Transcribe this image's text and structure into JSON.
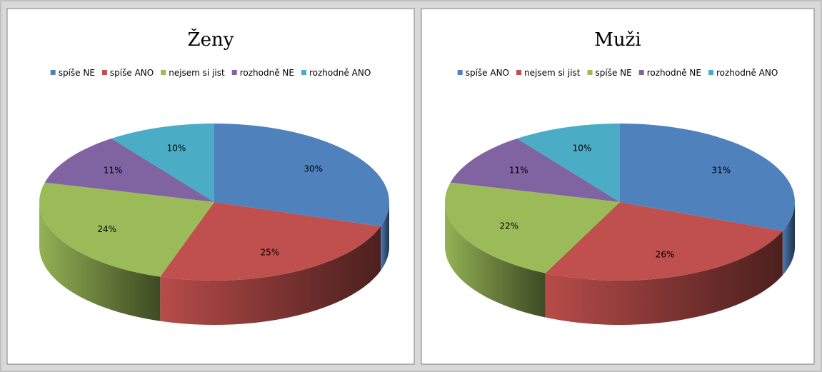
{
  "chart_data": [
    {
      "type": "pie",
      "title": "Ženy",
      "categories": [
        "spíše NE",
        "spíše ANO",
        "nejsem si jist",
        "rozhodně NE",
        "rozhodně ANO"
      ],
      "values": [
        30,
        25,
        24,
        11,
        10
      ],
      "value_labels": [
        "30%",
        "25%",
        "24%",
        "11%",
        "10%"
      ],
      "colors": [
        "#4f81bd",
        "#c0504d",
        "#9bbb59",
        "#8064a2",
        "#4bacc6"
      ],
      "legend": "top"
    },
    {
      "type": "pie",
      "title": "Muži",
      "categories": [
        "spíše ANO",
        "nejsem si jist",
        "spíše NE",
        "rozhodně NE",
        "rozhodně ANO"
      ],
      "values": [
        31,
        26,
        22,
        11,
        10
      ],
      "value_labels": [
        "31%",
        "26%",
        "22%",
        "11%",
        "10%"
      ],
      "colors": [
        "#4f81bd",
        "#c0504d",
        "#9bbb59",
        "#8064a2",
        "#4bacc6"
      ],
      "legend": "top"
    }
  ]
}
